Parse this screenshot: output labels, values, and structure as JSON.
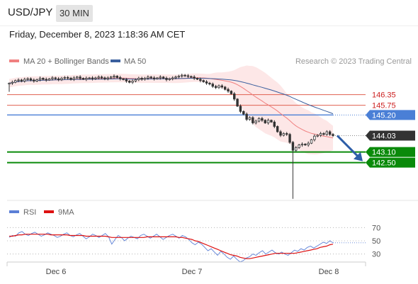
{
  "header": {
    "pair": "USD/JPY",
    "timeframe": "30 MIN"
  },
  "datetime": "Friday, December 8, 2023 1:18:36 AM CET",
  "legend": {
    "ma20": {
      "label": "MA 20 + Bollinger Bands",
      "color": "#f08080"
    },
    "ma50": {
      "label": "MA 50",
      "color": "#3a5f9e"
    }
  },
  "copyright": "Research © 2023 Trading Central",
  "rsi_legend": {
    "rsi": {
      "label": "RSI",
      "color": "#5b7fd6"
    },
    "ma9": {
      "label": "9MA",
      "color": "#dd1111"
    }
  },
  "chart_data": [
    {
      "type": "candlestick",
      "ylim": [
        140.4,
        147.9
      ],
      "levels": [
        {
          "value": 146.35,
          "label": "146.35",
          "color": "#e06050",
          "style": "line"
        },
        {
          "value": 145.75,
          "label": "145.75",
          "color": "#e06050",
          "style": "line"
        },
        {
          "value": 145.2,
          "label": "145.20",
          "color": "#4a7fd6",
          "style": "box"
        },
        {
          "value": 144.03,
          "label": "144.03",
          "color": "#333333",
          "style": "box"
        },
        {
          "value": 143.1,
          "label": "143.10",
          "color": "#0a8a0a",
          "style": "box"
        },
        {
          "value": 142.5,
          "label": "142.50",
          "color": "#0a8a0a",
          "style": "box"
        }
      ],
      "forecast": {
        "from": 144.03,
        "to": 142.5,
        "color": "#2f5fa8"
      },
      "x_ticks": [
        "Dec 6",
        "Dec 7",
        "Dec 8"
      ],
      "series": [
        {
          "values": [
            147.0,
            147.05,
            147.15,
            147.18,
            147.12,
            147.22,
            147.25,
            147.18,
            147.12,
            147.2,
            147.28,
            147.22,
            147.18,
            147.25,
            147.3,
            147.25,
            147.2,
            147.28,
            147.32,
            147.28,
            147.22,
            147.3,
            147.35,
            147.28,
            147.22,
            147.28,
            147.3,
            147.25,
            147.3,
            147.35,
            147.3,
            147.25,
            147.3,
            147.35,
            147.4,
            147.32,
            147.25,
            147.2,
            147.12,
            147.05,
            147.12,
            147.2,
            147.28,
            147.22,
            147.28,
            147.35,
            147.3,
            147.25,
            147.3,
            147.35,
            147.28,
            147.2,
            147.25,
            147.3,
            147.35,
            147.4,
            147.45,
            147.42,
            147.38,
            147.35,
            147.28,
            147.22,
            147.15,
            147.08,
            147.0,
            146.95,
            146.82,
            146.75,
            146.85,
            146.78,
            146.65,
            146.55,
            146.4,
            146.1,
            145.7,
            145.4,
            145.25,
            144.95,
            145.05,
            144.75,
            144.85,
            145.0,
            144.9,
            144.75,
            144.9,
            144.8,
            144.55,
            144.25,
            144.05,
            144.15,
            144.1,
            143.65,
            143.2,
            143.35,
            143.5,
            143.55,
            143.5,
            143.6,
            143.8,
            144.0,
            144.05,
            144.15,
            144.1,
            144.25,
            144.1,
            144.03
          ]
        }
      ]
    },
    {
      "type": "line",
      "ylim": [
        0,
        100
      ],
      "y_ticks": [
        70,
        50,
        30
      ],
      "series": [
        {
          "name": "RSI",
          "values": [
            55,
            58,
            57,
            62,
            64,
            60,
            58,
            61,
            63,
            60,
            57,
            59,
            62,
            60,
            58,
            55,
            57,
            60,
            62,
            58,
            56,
            59,
            61,
            57,
            53,
            56,
            60,
            58,
            55,
            58,
            61,
            56,
            45,
            52,
            58,
            55,
            50,
            54,
            57,
            55,
            53,
            58,
            60,
            57,
            54,
            57,
            60,
            56,
            52,
            55,
            58,
            60,
            57,
            54,
            58,
            56,
            52,
            47,
            44,
            48,
            45,
            40,
            35,
            38,
            33,
            28,
            34,
            30,
            25,
            22,
            27,
            22,
            18,
            20,
            24,
            26,
            30,
            28,
            32,
            35,
            30,
            33,
            36,
            32,
            30,
            33,
            30,
            28,
            32,
            36,
            34,
            38,
            36,
            40,
            42,
            39,
            42,
            45,
            48,
            46,
            50,
            47
          ]
        },
        {
          "name": "9MA",
          "values": [
            57,
            57,
            58,
            59,
            59,
            60,
            60,
            60,
            60,
            60,
            60,
            60,
            60,
            59,
            59,
            59,
            59,
            59,
            59,
            58,
            58,
            58,
            58,
            58,
            57,
            57,
            57,
            57,
            57,
            57,
            57,
            56,
            55,
            55,
            55,
            55,
            55,
            55,
            55,
            55,
            55,
            55,
            55,
            56,
            56,
            56,
            56,
            56,
            56,
            56,
            56,
            56,
            56,
            55,
            55,
            54,
            53,
            52,
            50,
            49,
            47,
            45,
            43,
            41,
            39,
            37,
            35,
            33,
            31,
            29,
            28,
            27,
            25,
            24,
            23,
            23,
            24,
            25,
            26,
            27,
            28,
            29,
            30,
            31,
            31,
            31,
            31,
            31,
            31,
            31,
            32,
            33,
            34,
            35,
            36,
            37,
            38,
            40,
            41,
            42,
            44,
            45
          ]
        }
      ]
    }
  ]
}
